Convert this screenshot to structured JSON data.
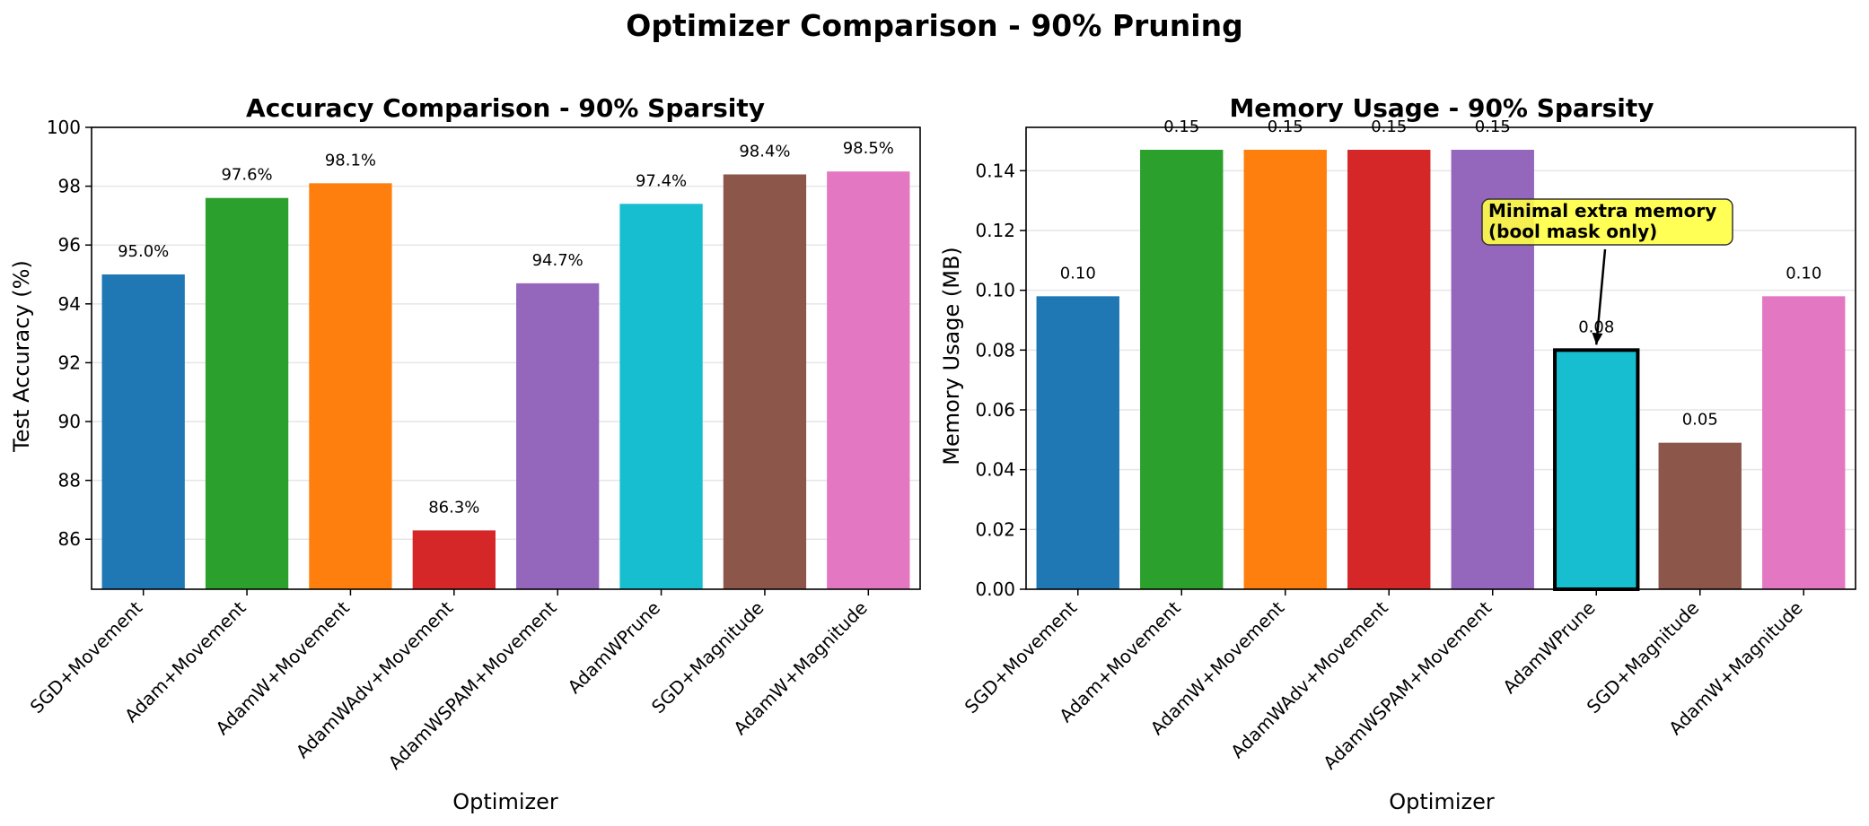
{
  "suptitle": "Optimizer Comparison - 90% Pruning",
  "chart_data": [
    {
      "type": "bar",
      "title": "Accuracy Comparison - 90% Sparsity",
      "xlabel": "Optimizer",
      "ylabel": "Test Accuracy (%)",
      "categories": [
        "SGD+Movement",
        "Adam+Movement",
        "AdamW+Movement",
        "AdamWAdv+Movement",
        "AdamWSPAM+Movement",
        "AdamWPrune",
        "SGD+Magnitude",
        "AdamW+Magnitude"
      ],
      "values": [
        95.0,
        97.6,
        98.1,
        86.3,
        94.7,
        97.4,
        98.4,
        98.5
      ],
      "value_labels": [
        "95.0%",
        "97.6%",
        "98.1%",
        "86.3%",
        "94.7%",
        "97.4%",
        "98.4%",
        "98.5%"
      ],
      "colors": [
        "#1f77b4",
        "#2ca02c",
        "#ff7f0e",
        "#d62728",
        "#9467bd",
        "#17becf",
        "#8c564b",
        "#e377c2"
      ],
      "ylim": [
        84.3,
        100
      ],
      "yticks": [
        86,
        88,
        90,
        92,
        94,
        96,
        98,
        100
      ],
      "ytick_labels": [
        "86",
        "88",
        "90",
        "92",
        "94",
        "96",
        "98",
        "100"
      ],
      "grid": "y"
    },
    {
      "type": "bar",
      "title": "Memory Usage - 90% Sparsity",
      "xlabel": "Optimizer",
      "ylabel": "Memory Usage (MB)",
      "categories": [
        "SGD+Movement",
        "Adam+Movement",
        "AdamW+Movement",
        "AdamWAdv+Movement",
        "AdamWSPAM+Movement",
        "AdamWPrune",
        "SGD+Magnitude",
        "AdamW+Magnitude"
      ],
      "values": [
        0.098,
        0.147,
        0.147,
        0.147,
        0.147,
        0.08,
        0.049,
        0.098
      ],
      "value_labels": [
        "0.10",
        "0.15",
        "0.15",
        "0.15",
        "0.15",
        "0.08",
        "0.05",
        "0.10"
      ],
      "colors": [
        "#1f77b4",
        "#2ca02c",
        "#ff7f0e",
        "#d62728",
        "#9467bd",
        "#17becf",
        "#8c564b",
        "#e377c2"
      ],
      "highlight_index": 5,
      "ylim": [
        0,
        0.1545
      ],
      "yticks": [
        0,
        0.02,
        0.04,
        0.06,
        0.08,
        0.1,
        0.12,
        0.14
      ],
      "ytick_labels": [
        "0.00",
        "0.02",
        "0.04",
        "0.06",
        "0.08",
        "0.10",
        "0.12",
        "0.14"
      ],
      "grid": "y",
      "annotation": {
        "lines": [
          "Minimal extra memory",
          "(bool mask only)"
        ],
        "target_index": 5,
        "box_color": "#ffff44"
      }
    }
  ]
}
